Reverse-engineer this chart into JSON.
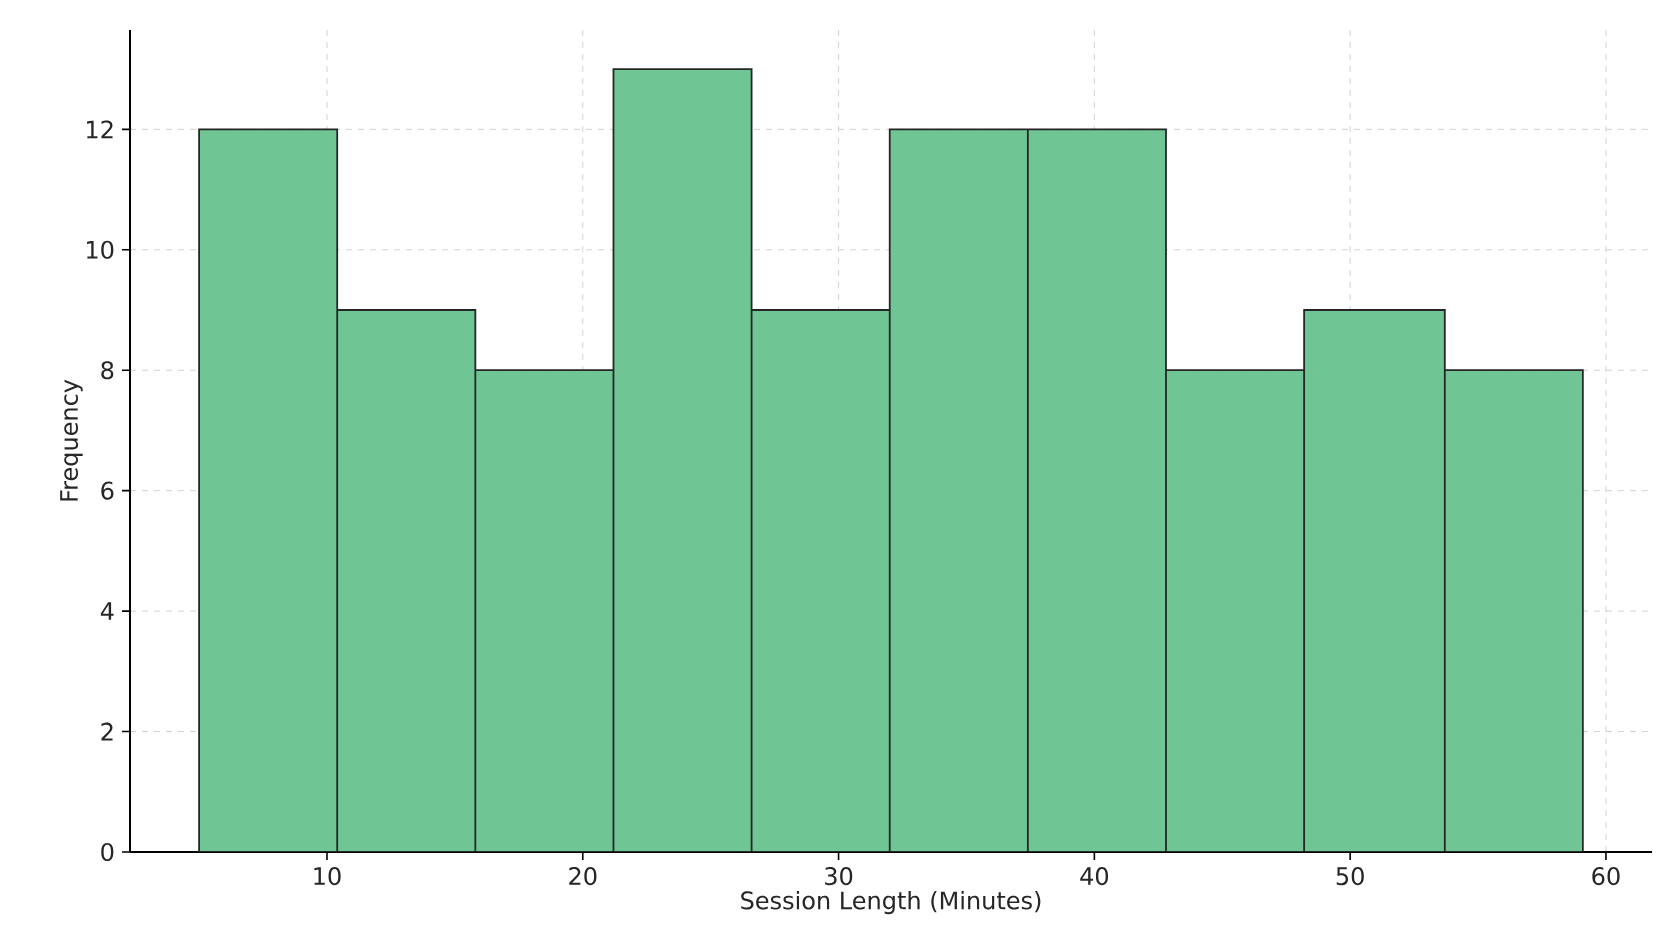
{
  "chart_data": {
    "type": "histogram",
    "xlabel": "Session Length (Minutes)",
    "ylabel": "Frequency",
    "bins": [
      5.0,
      10.4,
      15.8,
      21.2,
      26.6,
      32.0,
      37.4,
      42.8,
      48.2,
      53.7,
      59.1
    ],
    "values": [
      12,
      9,
      8,
      13,
      9,
      12,
      12,
      8,
      9,
      8
    ],
    "color": "#6fc594",
    "xlim": [
      2.3,
      61.8
    ],
    "xticks": [
      10,
      20,
      30,
      40,
      50,
      60
    ],
    "ylim": [
      0,
      13.65
    ],
    "yticks": [
      0,
      2,
      4,
      6,
      8,
      10,
      12
    ],
    "grid": true
  }
}
